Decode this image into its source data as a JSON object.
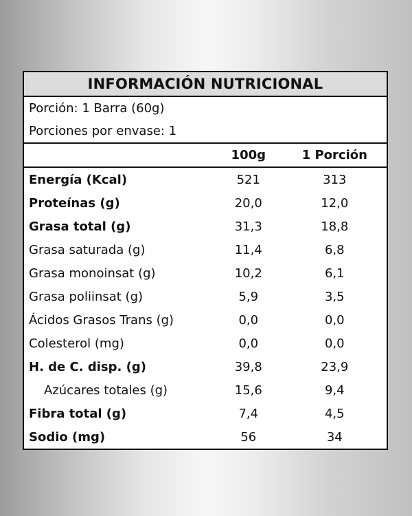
{
  "label": {
    "title": "INFORMACIÓN NUTRICIONAL",
    "serving_size": "Porción: 1 Barra (60g)",
    "servings_per_container": "Porciones por envase: 1",
    "columns": [
      "100g",
      "1 Porción"
    ],
    "rows": [
      {
        "name": "Energía (Kcal)",
        "per_100g": "521",
        "per_portion": "313",
        "bold": true,
        "indent": false
      },
      {
        "name": "Proteínas (g)",
        "per_100g": "20,0",
        "per_portion": "12,0",
        "bold": true,
        "indent": false
      },
      {
        "name": "Grasa total (g)",
        "per_100g": "31,3",
        "per_portion": "18,8",
        "bold": true,
        "indent": false
      },
      {
        "name": "Grasa saturada (g)",
        "per_100g": "11,4",
        "per_portion": "6,8",
        "bold": false,
        "indent": false
      },
      {
        "name": "Grasa monoinsat (g)",
        "per_100g": "10,2",
        "per_portion": "6,1",
        "bold": false,
        "indent": false
      },
      {
        "name": "Grasa poliinsat (g)",
        "per_100g": "5,9",
        "per_portion": "3,5",
        "bold": false,
        "indent": false
      },
      {
        "name": "Ácidos Grasos Trans (g)",
        "per_100g": "0,0",
        "per_portion": "0,0",
        "bold": false,
        "indent": false
      },
      {
        "name": "Colesterol (mg)",
        "per_100g": "0,0",
        "per_portion": "0,0",
        "bold": false,
        "indent": false
      },
      {
        "name": "H. de C. disp. (g)",
        "per_100g": "39,8",
        "per_portion": "23,9",
        "bold": true,
        "indent": false
      },
      {
        "name": "Azúcares totales (g)",
        "per_100g": "15,6",
        "per_portion": "9,4",
        "bold": false,
        "indent": true
      },
      {
        "name": "Fibra total (g)",
        "per_100g": "7,4",
        "per_portion": "4,5",
        "bold": true,
        "indent": false
      },
      {
        "name": "Sodio (mg)",
        "per_100g": "56",
        "per_portion": "34",
        "bold": true,
        "indent": false
      }
    ]
  }
}
